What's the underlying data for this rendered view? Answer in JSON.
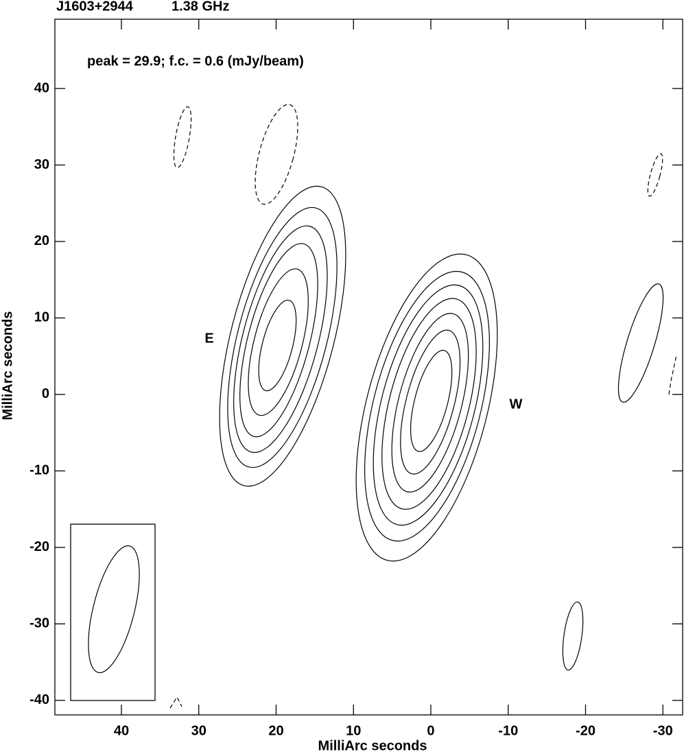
{
  "chart_data": {
    "type": "contour",
    "title": "J1603+2944",
    "subtitle": "1.38 GHz",
    "annotation": "peak = 29.9;  f.c. = 0.6 (mJy/beam)",
    "component_labels": [
      "E",
      "W"
    ],
    "xlabel": "MilliArc seconds",
    "ylabel": "MilliArc seconds",
    "xlim": [
      48.6,
      -32.55
    ],
    "ylim": [
      -41.9,
      49.06
    ],
    "xticks": [
      40,
      30,
      20,
      10,
      0,
      -10,
      -20,
      -30
    ],
    "yticks": [
      -40,
      -30,
      -20,
      -10,
      0,
      10,
      20,
      30,
      40
    ]
  }
}
